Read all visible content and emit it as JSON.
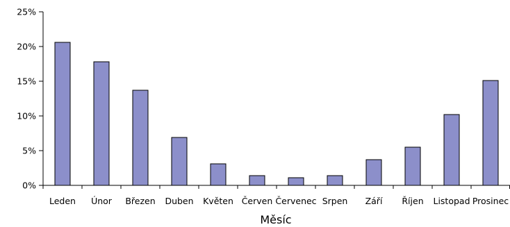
{
  "chart_data": {
    "type": "bar",
    "title": "",
    "xlabel": "Měsíc",
    "ylabel": "",
    "ylim": [
      0,
      25
    ],
    "y_ticks": [
      "0%",
      "5%",
      "10%",
      "15%",
      "20%",
      "25%"
    ],
    "y_tick_values": [
      0,
      5,
      10,
      15,
      20,
      25
    ],
    "grid": false,
    "legend": "none",
    "bar_color": "#8c8fca",
    "categories": [
      "Leden",
      "Únor",
      "Březen",
      "Duben",
      "Květen",
      "Červen",
      "Červenec",
      "Srpen",
      "Září",
      "Říjen",
      "Listopad",
      "Prosinec"
    ],
    "values": [
      20.6,
      17.8,
      13.7,
      6.9,
      3.1,
      1.4,
      1.1,
      1.4,
      3.7,
      5.5,
      10.2,
      15.1
    ]
  }
}
